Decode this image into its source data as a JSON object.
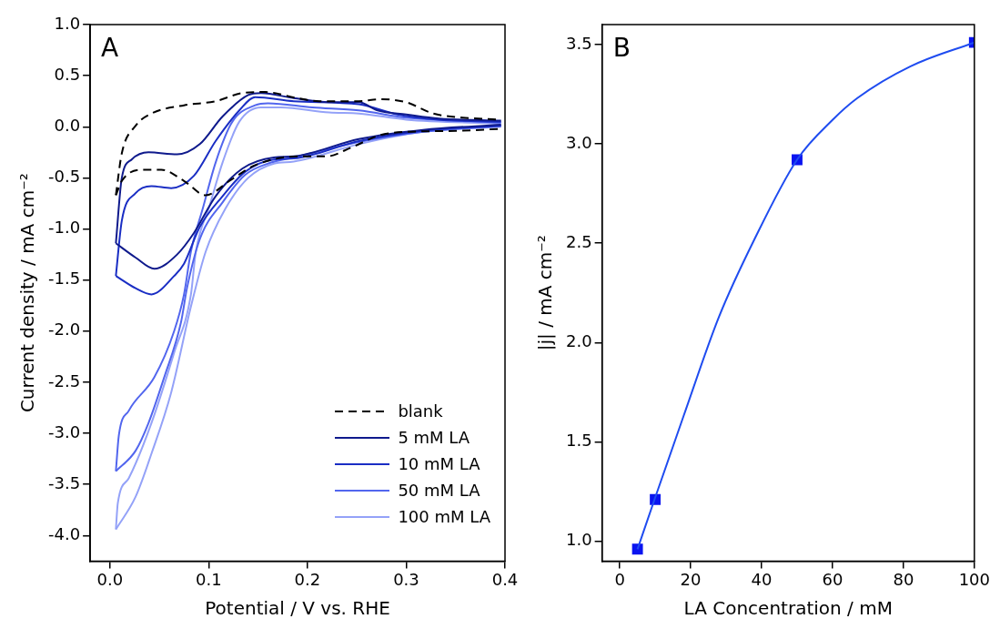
{
  "chart_data": [
    {
      "type": "line",
      "annotations": [
        "A"
      ],
      "xlabel": "Potential / V vs. RHE",
      "ylabel": "Current density / mA cm⁻²",
      "xlim": [
        -0.02,
        0.4
      ],
      "ylim": [
        -4.25,
        1.0
      ],
      "xticks": [
        {
          "value": 0,
          "label": "0.0"
        },
        {
          "value": 0.1,
          "label": "0.1"
        },
        {
          "value": 0.2,
          "label": "0.2"
        },
        {
          "value": 0.3,
          "label": "0.3"
        },
        {
          "value": 0.4,
          "label": "0.4"
        }
      ],
      "yticks": [
        {
          "value": -4,
          "label": "-4.0"
        },
        {
          "value": -3.5,
          "label": "-3.5"
        },
        {
          "value": -3,
          "label": "-3.0"
        },
        {
          "value": -2.5,
          "label": "-2.5"
        },
        {
          "value": -2,
          "label": "-2.0"
        },
        {
          "value": -1.5,
          "label": "-1.5"
        },
        {
          "value": -1,
          "label": "-1.0"
        },
        {
          "value": -0.5,
          "label": "-0.5"
        },
        {
          "value": 0,
          "label": "0.0"
        },
        {
          "value": 0.5,
          "label": "0.5"
        },
        {
          "value": 1,
          "label": "1.0"
        }
      ],
      "legend": "bottom right",
      "marker": "none",
      "series": [
        {
          "name": "blank",
          "color": "#000000",
          "line_style": "dashed",
          "x": [
            0.006,
            0.012,
            0.026,
            0.042,
            0.075,
            0.107,
            0.134,
            0.157,
            0.19,
            0.212,
            0.252,
            0.274,
            0.3,
            0.327,
            0.357,
            0.396
          ],
          "values": [
            -0.67,
            -0.26,
            0.01,
            0.13,
            0.21,
            0.25,
            0.33,
            0.34,
            0.28,
            0.25,
            0.25,
            0.27,
            0.24,
            0.13,
            0.09,
            0.07
          ]
        },
        {
          "color": "#000000",
          "line_style": "dashed",
          "x": [
            0.006,
            0.012,
            0.032,
            0.052,
            0.075,
            0.097,
            0.121,
            0.146,
            0.19,
            0.219,
            0.245,
            0.274,
            0.3,
            0.35,
            0.396
          ],
          "values": [
            -0.67,
            -0.53,
            -0.42,
            -0.42,
            -0.53,
            -0.67,
            -0.53,
            -0.38,
            -0.29,
            -0.29,
            -0.2,
            -0.08,
            -0.05,
            -0.04,
            -0.02
          ]
        },
        {
          "name": "5 mM LA",
          "color": "#0f1a8c",
          "line_style": "solid",
          "x": [
            0.006,
            0.012,
            0.022,
            0.039,
            0.068,
            0.091,
            0.114,
            0.14,
            0.153,
            0.186,
            0.222,
            0.252,
            0.271,
            0.3,
            0.333,
            0.396
          ],
          "values": [
            -1.14,
            -0.5,
            -0.32,
            -0.25,
            -0.27,
            -0.17,
            0.1,
            0.31,
            0.33,
            0.28,
            0.24,
            0.24,
            0.16,
            0.12,
            0.08,
            0.06
          ]
        },
        {
          "color": "#0f1a8c",
          "line_style": "solid",
          "x": [
            0.006,
            0.026,
            0.045,
            0.068,
            0.085,
            0.107,
            0.134,
            0.166,
            0.186,
            0.252,
            0.317,
            0.396
          ],
          "values": [
            -1.14,
            -1.28,
            -1.39,
            -1.25,
            -1.04,
            -0.68,
            -0.41,
            -0.3,
            -0.29,
            -0.12,
            -0.03,
            0.02
          ]
        },
        {
          "name": "10 mM LA",
          "color": "#1a2ec4",
          "line_style": "solid",
          "x": [
            0.006,
            0.012,
            0.026,
            0.042,
            0.062,
            0.085,
            0.107,
            0.131,
            0.147,
            0.186,
            0.252,
            0.291,
            0.333,
            0.396
          ],
          "values": [
            -1.46,
            -0.92,
            -0.65,
            -0.58,
            -0.6,
            -0.48,
            -0.14,
            0.16,
            0.29,
            0.25,
            0.22,
            0.12,
            0.07,
            0.05
          ]
        },
        {
          "color": "#1a2ec4",
          "line_style": "solid",
          "x": [
            0.006,
            0.026,
            0.042,
            0.065,
            0.075,
            0.091,
            0.114,
            0.137,
            0.166,
            0.186,
            0.252,
            0.317,
            0.396
          ],
          "values": [
            -1.46,
            -1.58,
            -1.64,
            -1.46,
            -1.34,
            -0.98,
            -0.68,
            -0.44,
            -0.32,
            -0.31,
            -0.14,
            -0.04,
            0.01
          ]
        },
        {
          "name": "50 mM LA",
          "color": "#5266ee",
          "line_style": "solid",
          "x": [
            0.006,
            0.009,
            0.019,
            0.045,
            0.065,
            0.075,
            0.082,
            0.094,
            0.107,
            0.124,
            0.147,
            0.16,
            0.205,
            0.252,
            0.3,
            0.396
          ],
          "values": [
            -3.37,
            -3.02,
            -2.78,
            -2.45,
            -2.0,
            -1.64,
            -1.22,
            -0.8,
            -0.35,
            0.05,
            0.21,
            0.23,
            0.19,
            0.16,
            0.09,
            0.04
          ]
        },
        {
          "color": "#5266ee",
          "line_style": "solid",
          "x": [
            0.006,
            0.026,
            0.039,
            0.055,
            0.072,
            0.078,
            0.091,
            0.114,
            0.137,
            0.163,
            0.186,
            0.252,
            0.317,
            0.396
          ],
          "values": [
            -3.37,
            -3.17,
            -2.9,
            -2.45,
            -1.91,
            -1.58,
            -1.1,
            -0.74,
            -0.47,
            -0.35,
            -0.3,
            -0.15,
            -0.05,
            0.01
          ]
        },
        {
          "name": "100 mM LA",
          "color": "#94a2f8",
          "line_style": "solid",
          "x": [
            0.006,
            0.008,
            0.019,
            0.042,
            0.065,
            0.082,
            0.087,
            0.101,
            0.114,
            0.131,
            0.153,
            0.173,
            0.222,
            0.252,
            0.3,
            0.396
          ],
          "values": [
            -3.94,
            -3.68,
            -3.44,
            -2.9,
            -2.21,
            -1.64,
            -1.22,
            -0.77,
            -0.35,
            0.05,
            0.19,
            0.19,
            0.14,
            0.13,
            0.07,
            0.03
          ]
        },
        {
          "color": "#94a2f8",
          "line_style": "solid",
          "x": [
            0.006,
            0.026,
            0.042,
            0.062,
            0.082,
            0.097,
            0.117,
            0.14,
            0.166,
            0.186,
            0.252,
            0.317,
            0.396
          ],
          "values": [
            -3.94,
            -3.62,
            -3.2,
            -2.6,
            -1.76,
            -1.22,
            -0.8,
            -0.5,
            -0.36,
            -0.34,
            -0.17,
            -0.05,
            0.0
          ]
        }
      ]
    },
    {
      "type": "scatter",
      "annotations": [
        "B"
      ],
      "xlabel": "LA Concentration / mM",
      "ylabel": "|j| / mA cm⁻²",
      "xlim": [
        -5,
        100
      ],
      "ylim": [
        0.9,
        3.6
      ],
      "xticks": [
        0,
        20,
        40,
        60,
        80,
        100
      ],
      "yticks": [
        {
          "value": 1,
          "label": "1.0"
        },
        {
          "value": 1.5,
          "label": "1.5"
        },
        {
          "value": 2,
          "label": "2.0"
        },
        {
          "value": 2.5,
          "label": "2.5"
        },
        {
          "value": 3,
          "label": "3.0"
        },
        {
          "value": 3.5,
          "label": "3.5"
        }
      ],
      "series": [
        {
          "type": "line",
          "color": "#1f4cf0",
          "marker": "none",
          "x": [
            5,
            10,
            18,
            28,
            38,
            50,
            60,
            67,
            82,
            100
          ],
          "values": [
            0.96,
            1.22,
            1.63,
            2.13,
            2.52,
            2.92,
            3.12,
            3.23,
            3.39,
            3.51
          ]
        },
        {
          "type": "scatter",
          "color": "#0a14f0",
          "marker": "square",
          "x": [
            5,
            10,
            50,
            100
          ],
          "values": [
            0.96,
            1.21,
            2.92,
            3.51
          ]
        }
      ]
    }
  ]
}
